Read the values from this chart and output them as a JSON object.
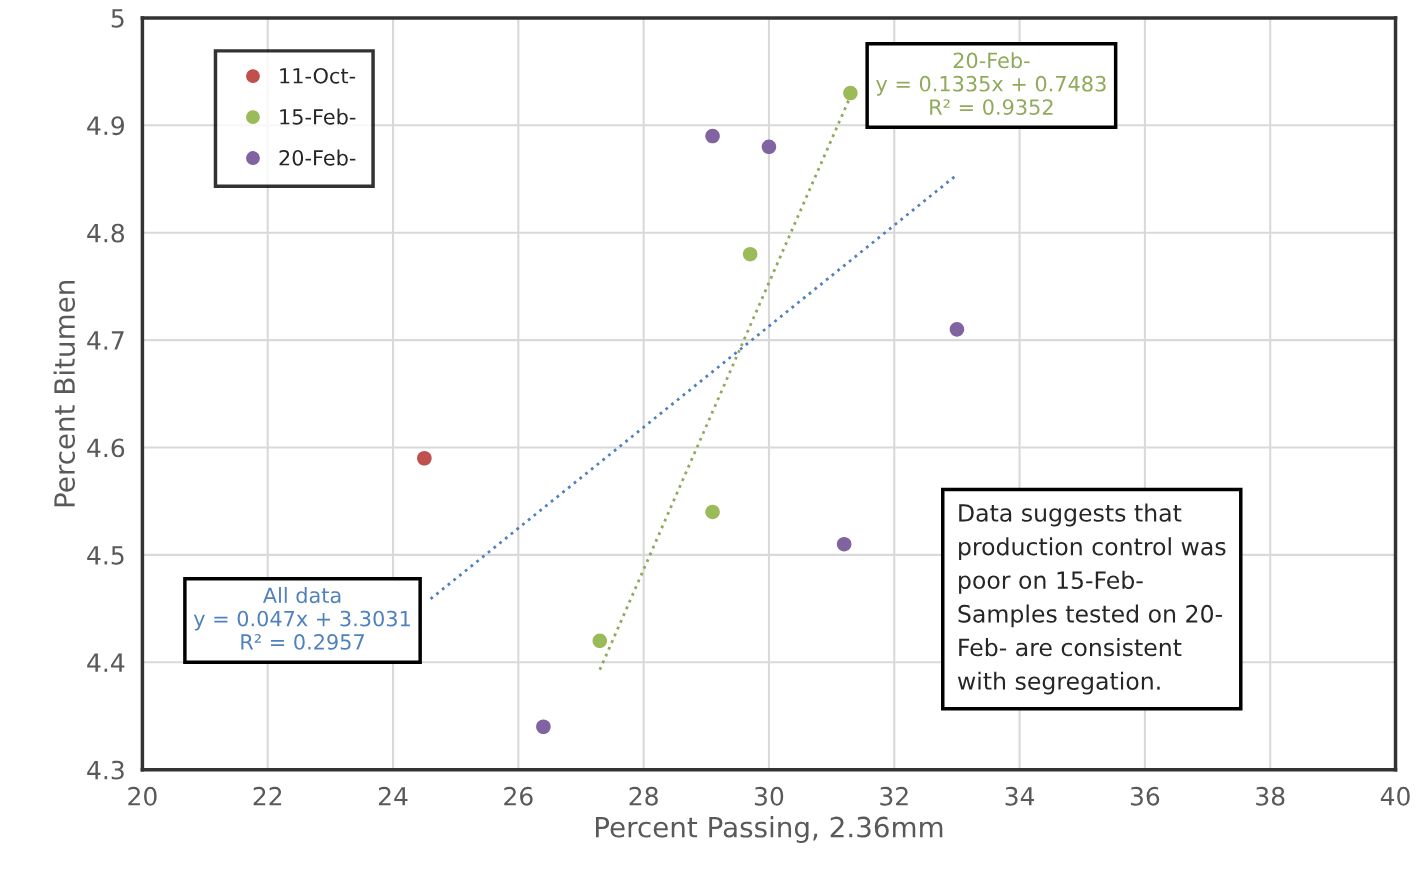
{
  "chart_data": {
    "type": "scatter",
    "xlabel": "Percent Passing, 2.36mm",
    "ylabel": "Percent Bitumen",
    "xlim": [
      20,
      40
    ],
    "ylim": [
      4.3,
      5
    ],
    "xticks": [
      20,
      22,
      24,
      26,
      28,
      30,
      32,
      34,
      36,
      38,
      40
    ],
    "yticks": [
      4.3,
      4.4,
      4.5,
      4.6,
      4.7,
      4.8,
      4.9,
      5
    ],
    "grid": true,
    "legend": "top left",
    "series": [
      {
        "name": "11-Oct-",
        "marker": "circle",
        "color": "#c0504d",
        "x": [
          24.5
        ],
        "values": [
          4.59
        ]
      },
      {
        "name": "15-Feb-",
        "marker": "circle",
        "color": "#9bbb59",
        "x": [
          29.7,
          29.1,
          27.3,
          31.3
        ],
        "values": [
          4.78,
          4.54,
          4.42,
          4.93
        ]
      },
      {
        "name": "20-Feb-",
        "marker": "circle",
        "color": "#8064a2",
        "x": [
          29.1,
          30.0,
          33.0,
          31.2,
          26.4
        ],
        "values": [
          4.89,
          4.88,
          4.71,
          4.51,
          4.34
        ]
      },
      {
        "name": "All data\ny = 0.047x + 3.3031\nR² = 0.2957",
        "type": "line",
        "line_style": "dotted",
        "color": "#4f81bd",
        "x": [
          24.6,
          33.0
        ],
        "values": [
          4.459,
          4.854
        ]
      },
      {
        "name": "20-Feb-\ny = 0.1335x + 0.7483\nR² = 0.9352",
        "type": "line",
        "line_style": "dotted",
        "color": "#8faa5a",
        "x": [
          27.3,
          31.3
        ],
        "values": [
          4.393,
          4.927
        ]
      }
    ],
    "annotations": [
      "Data suggests that\nproduction control was\npoor on 15-Feb-\nSamples tested on 20-\nFeb- are consistent\nwith segregation."
    ]
  }
}
